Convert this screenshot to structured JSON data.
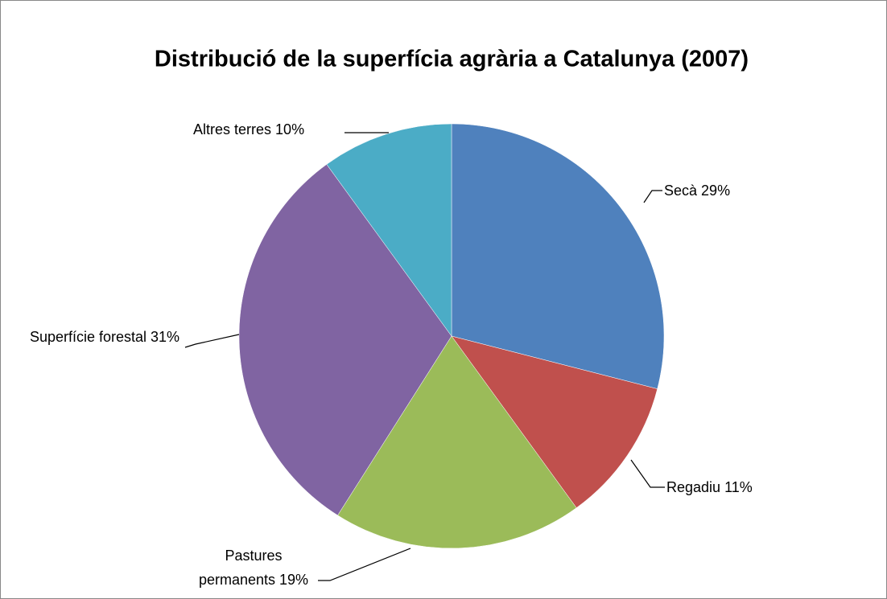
{
  "chart_data": {
    "type": "pie",
    "title": "Distribució de la superfícia agrària a Catalunya (2007)",
    "categories": [
      "Secà",
      "Regadiu",
      "Pastures permanents",
      "Superfície forestal",
      "Altres terres"
    ],
    "values": [
      29,
      11,
      19,
      31,
      10
    ],
    "value_labels": [
      "29%",
      "11%",
      "19%",
      "31%",
      "10%"
    ],
    "colors": [
      "#4f81bd",
      "#c0504d",
      "#9bbb59",
      "#8064a2",
      "#4bacc6"
    ]
  }
}
